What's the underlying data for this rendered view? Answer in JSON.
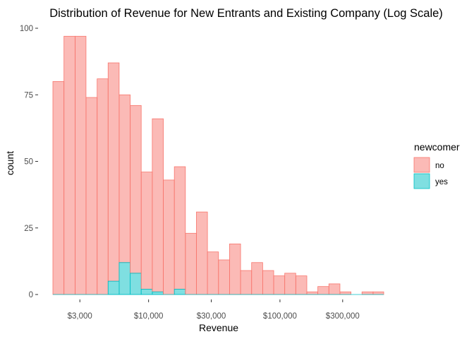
{
  "chart_data": {
    "type": "bar",
    "title": "Distribution of Revenue for New Entrants and Existing Company (Log Scale)",
    "xlabel": "Revenue",
    "ylabel": "count",
    "x_scale": "log10",
    "bin_count": 30,
    "xlim": [
      1870,
      616000
    ],
    "ylim": [
      0,
      100
    ],
    "x_ticks": [
      {
        "value": 3000,
        "label": "$3,000"
      },
      {
        "value": 10000,
        "label": "$10,000"
      },
      {
        "value": 30000,
        "label": "$30,000"
      },
      {
        "value": 100000,
        "label": "$100,000"
      },
      {
        "value": 300000,
        "label": "$300,000"
      }
    ],
    "y_ticks": [
      {
        "value": 0,
        "label": "0"
      },
      {
        "value": 25,
        "label": "25"
      },
      {
        "value": 50,
        "label": "50"
      },
      {
        "value": 75,
        "label": "75"
      },
      {
        "value": 100,
        "label": "100"
      }
    ],
    "bin_edges": [
      1870,
      2270,
      2760,
      3340,
      4060,
      4920,
      5970,
      7250,
      8790,
      10670,
      12950,
      15710,
      19060,
      23120,
      28060,
      34050,
      41320,
      50140,
      60840,
      73830,
      89590,
      108700,
      131900,
      160100,
      194200,
      235700,
      286000,
      347000,
      421000,
      511000,
      616000
    ],
    "series": [
      {
        "name": "no",
        "values": [
          80,
          97,
          97,
          74,
          81,
          82,
          63,
          63,
          44,
          65,
          43,
          46,
          23,
          31,
          16,
          13,
          19,
          9,
          12,
          9,
          7,
          8,
          7,
          1,
          3,
          4,
          1,
          0,
          1,
          1
        ]
      },
      {
        "name": "yes",
        "values": [
          0,
          0,
          0,
          0,
          0,
          5,
          12,
          8,
          2,
          1,
          0,
          2,
          0,
          0,
          0,
          0,
          0,
          0,
          0,
          0,
          0,
          0,
          0,
          0,
          0,
          0,
          0,
          0,
          0,
          0
        ]
      }
    ],
    "stacked": true,
    "grid": false,
    "legend": {
      "title": "newcomer",
      "position": "right"
    },
    "colors": {
      "no_fill": "#F8766D",
      "no_stroke": "#F8766D",
      "yes_fill": "#00BFC4",
      "yes_stroke": "#00BFC4",
      "axis_tick": "#333333",
      "tick_text": "#4d4d4d"
    }
  }
}
